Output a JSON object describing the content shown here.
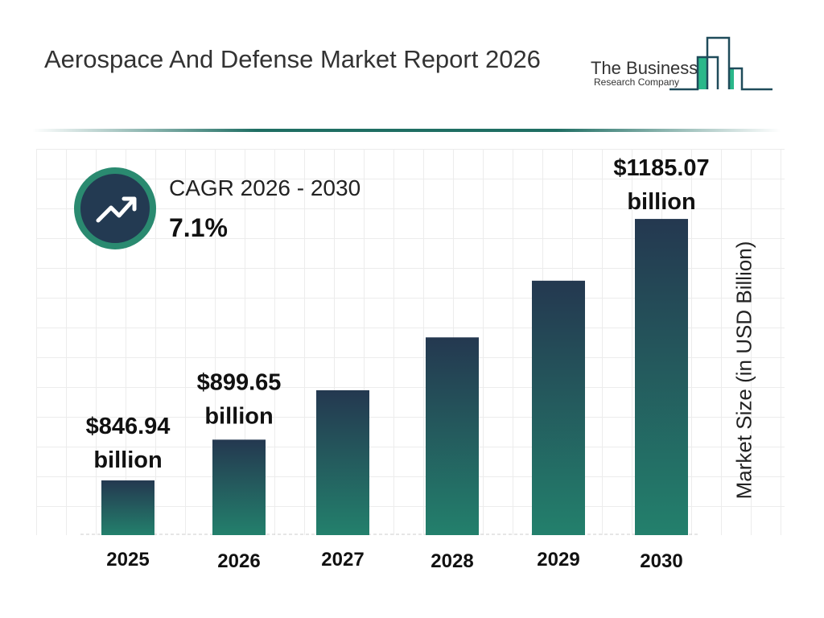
{
  "title": "Aerospace And Defense Market Report 2026",
  "logo": {
    "line1": "The Business",
    "line2": "Research Company"
  },
  "cagr": {
    "label": "CAGR 2026 - 2030",
    "value": "7.1%",
    "icon": "trending-up-icon"
  },
  "colors": {
    "bar_top": "#243850",
    "bar_bottom": "#23806c",
    "accent": "#2a8a70"
  },
  "chart_data": {
    "type": "bar",
    "categories": [
      "2025",
      "2026",
      "2027",
      "2028",
      "2029",
      "2030"
    ],
    "values": [
      846.94,
      899.65,
      963.5,
      1031.9,
      1105.2,
      1185.07
    ],
    "data_labels": [
      [
        "$846.94",
        "billion"
      ],
      [
        "$899.65",
        "billion"
      ],
      null,
      null,
      null,
      [
        "$1185.07",
        "billion"
      ]
    ],
    "ylabel": "Market Size (in USD Billion)",
    "grid": true
  }
}
